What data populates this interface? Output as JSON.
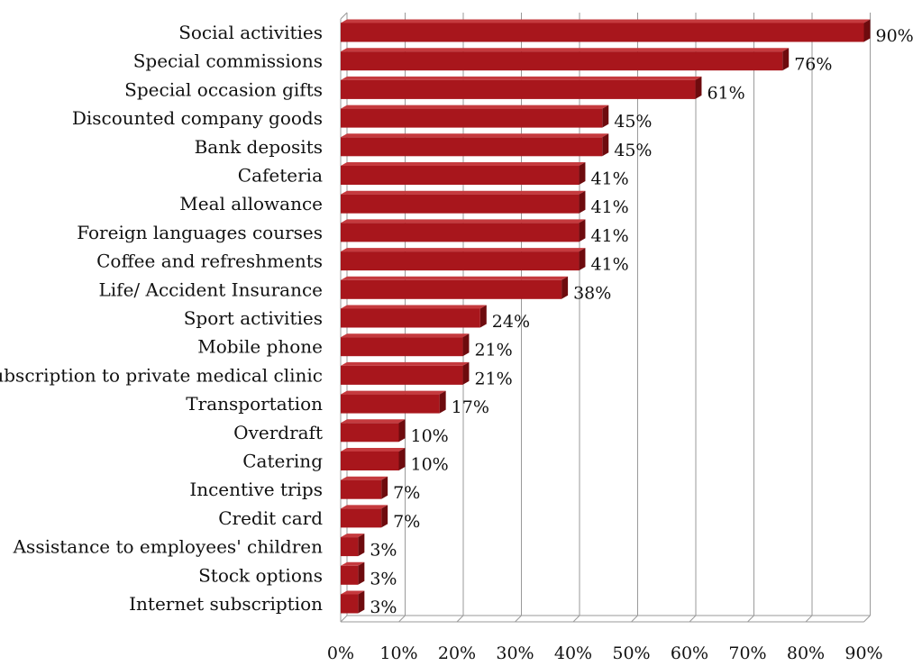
{
  "chart_data": {
    "type": "bar",
    "orientation": "horizontal",
    "categories": [
      "Social activities",
      "Special commissions",
      "Special occasion gifts",
      "Discounted company goods",
      "Bank deposits",
      "Cafeteria",
      "Meal allowance",
      "Foreign languages courses",
      "Coffee and refreshments",
      "Life/ Accident Insurance",
      "Sport activities",
      "Mobile phone",
      "Subscription to private medical clinic",
      "Transportation",
      "Overdraft",
      "Catering",
      "Incentive trips",
      "Credit card",
      "Assistance to employees' children",
      "Stock options",
      "Internet subscription"
    ],
    "values": [
      90,
      76,
      61,
      45,
      45,
      41,
      41,
      41,
      41,
      38,
      24,
      21,
      21,
      17,
      10,
      10,
      7,
      7,
      3,
      3,
      3
    ],
    "value_labels": [
      "90%",
      "76%",
      "61%",
      "45%",
      "45%",
      "41%",
      "41%",
      "41%",
      "41%",
      "38%",
      "24%",
      "21%",
      "21%",
      "17%",
      "10%",
      "10%",
      "7%",
      "7%",
      "3%",
      "3%",
      "3%"
    ],
    "ticks": [
      0,
      10,
      20,
      30,
      40,
      50,
      60,
      70,
      80,
      90
    ],
    "tick_labels": [
      "0%",
      "10%",
      "20%",
      "30%",
      "40%",
      "50%",
      "60%",
      "70%",
      "80%",
      "90%"
    ],
    "xlim": [
      0,
      90
    ],
    "grid": true,
    "bar_color": "#A8161C",
    "bar_dark_color": "#6E0B0E",
    "bar_light_color": "#C53A3E",
    "grid_color": "#9A9A9A"
  }
}
